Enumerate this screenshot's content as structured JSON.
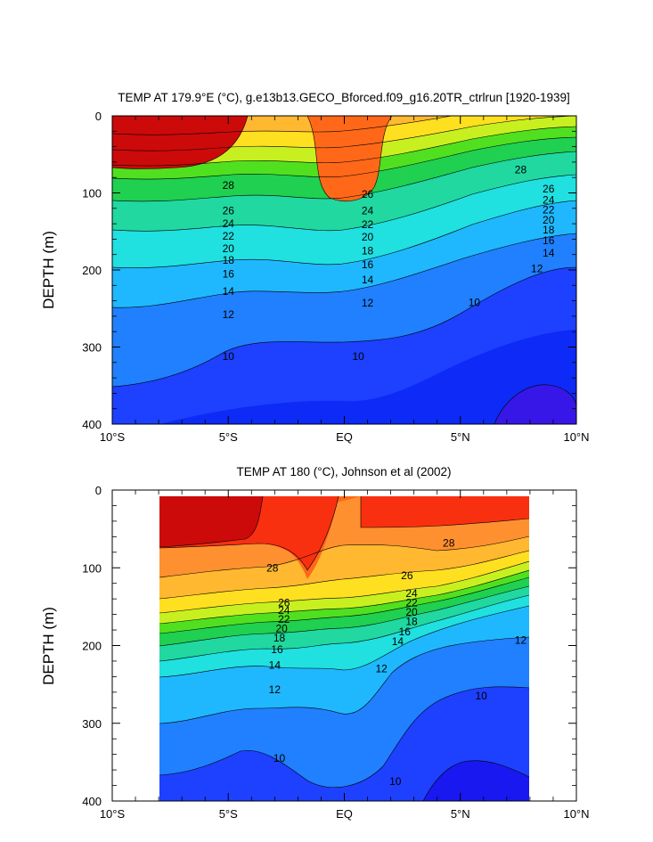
{
  "chart_data": [
    {
      "type": "heatmap",
      "title": "TEMP AT 179.9°E (°C), g.e13b13.GECO_Bforced.f09_g16.20TR_ctrlrun [1920-1939]",
      "ylabel": "DEPTH (m)",
      "xlabel": "",
      "x_ticks": [
        "10°S",
        "5°S",
        "EQ",
        "5°N",
        "10°N"
      ],
      "y_ticks": [
        "0",
        "100",
        "200",
        "300",
        "400"
      ],
      "xlim": [
        -10,
        10
      ],
      "ylim": [
        400,
        0
      ],
      "colormap": [
        "#6a00d8",
        "#1a00f0",
        "#1e40ff",
        "#2080ff",
        "#1fc0ff",
        "#20e8e8",
        "#20e0b0",
        "#20d060",
        "#30e020",
        "#a0f030",
        "#f0f020",
        "#ffd020",
        "#ffb040",
        "#ff9030",
        "#ff6020",
        "#ff3010",
        "#f01010",
        "#d00808"
      ],
      "contour_labels": [
        {
          "lat": -5.0,
          "depth": 90,
          "text": "28"
        },
        {
          "lat": -5.0,
          "depth": 123,
          "text": "26"
        },
        {
          "lat": -5.0,
          "depth": 140,
          "text": "24"
        },
        {
          "lat": -5.0,
          "depth": 156,
          "text": "22"
        },
        {
          "lat": -5.0,
          "depth": 172,
          "text": "20"
        },
        {
          "lat": -5.0,
          "depth": 187,
          "text": "18"
        },
        {
          "lat": -5.0,
          "depth": 205,
          "text": "16"
        },
        {
          "lat": -5.0,
          "depth": 228,
          "text": "14"
        },
        {
          "lat": -5.0,
          "depth": 258,
          "text": "12"
        },
        {
          "lat": -5.0,
          "depth": 312,
          "text": "10"
        },
        {
          "lat": 1.0,
          "depth": 102,
          "text": "26"
        },
        {
          "lat": 1.0,
          "depth": 123,
          "text": "24"
        },
        {
          "lat": 1.0,
          "depth": 141,
          "text": "22"
        },
        {
          "lat": 1.0,
          "depth": 157,
          "text": "20"
        },
        {
          "lat": 1.0,
          "depth": 175,
          "text": "18"
        },
        {
          "lat": 1.0,
          "depth": 193,
          "text": "16"
        },
        {
          "lat": 1.0,
          "depth": 213,
          "text": "14"
        },
        {
          "lat": 1.0,
          "depth": 243,
          "text": "12"
        },
        {
          "lat": 0.6,
          "depth": 312,
          "text": "10"
        },
        {
          "lat": 7.6,
          "depth": 70,
          "text": "28"
        },
        {
          "lat": 8.8,
          "depth": 95,
          "text": "26"
        },
        {
          "lat": 8.8,
          "depth": 109,
          "text": "24"
        },
        {
          "lat": 8.8,
          "depth": 122,
          "text": "22"
        },
        {
          "lat": 8.8,
          "depth": 135,
          "text": "20"
        },
        {
          "lat": 8.8,
          "depth": 148,
          "text": "18"
        },
        {
          "lat": 8.8,
          "depth": 162,
          "text": "16"
        },
        {
          "lat": 8.8,
          "depth": 178,
          "text": "14"
        },
        {
          "lat": 8.3,
          "depth": 198,
          "text": "12"
        },
        {
          "lat": 5.6,
          "depth": 242,
          "text": "10"
        }
      ]
    },
    {
      "type": "heatmap",
      "title": "TEMP AT 180 (°C), Johnson et al (2002)",
      "ylabel": "DEPTH (m)",
      "xlabel": "",
      "x_ticks": [
        "10°S",
        "5°S",
        "EQ",
        "5°N",
        "10°N"
      ],
      "y_ticks": [
        "0",
        "100",
        "200",
        "300",
        "400"
      ],
      "xlim": [
        -10,
        10
      ],
      "ylim": [
        400,
        0
      ],
      "data_lat_range": [
        -8,
        8
      ],
      "contour_labels": [
        {
          "lat": -3.1,
          "depth": 100,
          "text": "28"
        },
        {
          "lat": -2.6,
          "depth": 145,
          "text": "26"
        },
        {
          "lat": -2.6,
          "depth": 155,
          "text": "24"
        },
        {
          "lat": -2.6,
          "depth": 166,
          "text": "22"
        },
        {
          "lat": -2.7,
          "depth": 178,
          "text": "20"
        },
        {
          "lat": -2.8,
          "depth": 190,
          "text": "18"
        },
        {
          "lat": -2.9,
          "depth": 205,
          "text": "16"
        },
        {
          "lat": -3.0,
          "depth": 225,
          "text": "14"
        },
        {
          "lat": -3.0,
          "depth": 257,
          "text": "12"
        },
        {
          "lat": -2.8,
          "depth": 345,
          "text": "10"
        },
        {
          "lat": 4.5,
          "depth": 68,
          "text": "28"
        },
        {
          "lat": 2.7,
          "depth": 110,
          "text": "26"
        },
        {
          "lat": 2.9,
          "depth": 133,
          "text": "24"
        },
        {
          "lat": 2.9,
          "depth": 145,
          "text": "22"
        },
        {
          "lat": 2.9,
          "depth": 157,
          "text": "20"
        },
        {
          "lat": 2.9,
          "depth": 169,
          "text": "18"
        },
        {
          "lat": 2.6,
          "depth": 182,
          "text": "16"
        },
        {
          "lat": 2.3,
          "depth": 195,
          "text": "14"
        },
        {
          "lat": 1.6,
          "depth": 230,
          "text": "12"
        },
        {
          "lat": 7.6,
          "depth": 193,
          "text": "12"
        },
        {
          "lat": 5.9,
          "depth": 265,
          "text": "10"
        },
        {
          "lat": 2.2,
          "depth": 375,
          "text": "10"
        }
      ]
    }
  ]
}
